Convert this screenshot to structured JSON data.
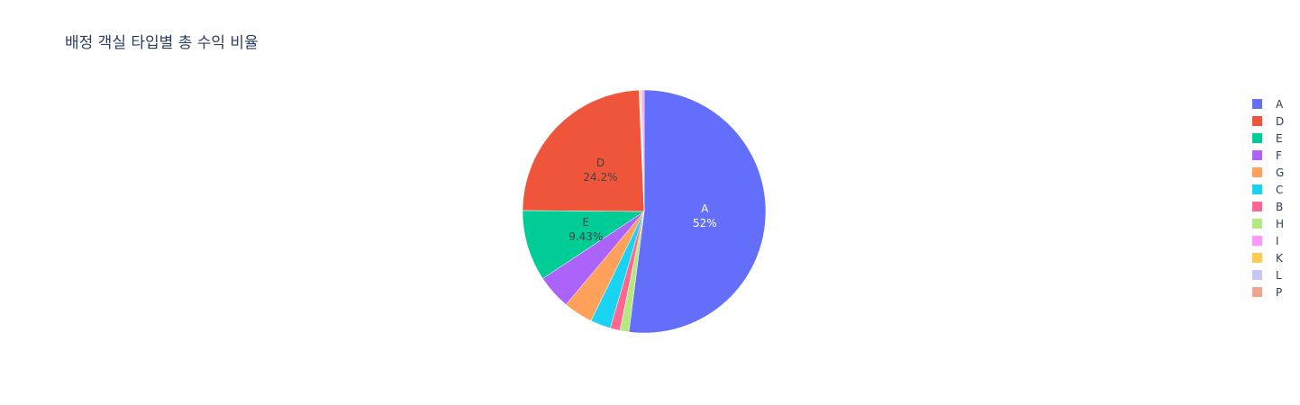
{
  "chart_data": {
    "type": "pie",
    "title": "배정 객실 타입별 총 수익 비율",
    "legend_position": "right",
    "direction": "clockwise",
    "start_angle_deg": 0,
    "slices": [
      {
        "label": "A",
        "value": 52.0,
        "text": "52%",
        "color": "#636efa",
        "text_color": "#ffffff"
      },
      {
        "label": "B",
        "value": 1.3,
        "text": "",
        "color": "#ff6692",
        "text_color": "#444444"
      },
      {
        "label": "C",
        "value": 2.7,
        "text": "",
        "color": "#19d3f3",
        "text_color": "#444444"
      },
      {
        "label": "D",
        "value": 24.2,
        "text": "24.2%",
        "color": "#ef553b",
        "text_color": "#444444"
      },
      {
        "label": "E",
        "value": 9.43,
        "text": "9.43%",
        "color": "#00cc96",
        "text_color": "#444444"
      },
      {
        "label": "F",
        "value": 4.6,
        "text": "",
        "color": "#ab63fa",
        "text_color": "#444444"
      },
      {
        "label": "G",
        "value": 3.9,
        "text": "",
        "color": "#ffa15a",
        "text_color": "#444444"
      },
      {
        "label": "H",
        "value": 1.2,
        "text": "",
        "color": "#b6e880",
        "text_color": "#444444"
      },
      {
        "label": "I",
        "value": 0.3,
        "text": "",
        "color": "#ff97ff",
        "text_color": "#444444"
      },
      {
        "label": "K",
        "value": 0.15,
        "text": "",
        "color": "#fecb52",
        "text_color": "#444444"
      },
      {
        "label": "L",
        "value": 0.12,
        "text": "",
        "color": "#c6c6f7",
        "text_color": "#444444"
      },
      {
        "label": "P",
        "value": 0.1,
        "text": "",
        "color": "#f0a38f",
        "text_color": "#444444"
      }
    ],
    "slice_order": [
      "A",
      "H",
      "B",
      "C",
      "G",
      "F",
      "E",
      "D",
      "P",
      "L",
      "K",
      "I"
    ],
    "legend_order": [
      "A",
      "D",
      "E",
      "F",
      "G",
      "C",
      "B",
      "H",
      "I",
      "K",
      "L",
      "P"
    ]
  }
}
